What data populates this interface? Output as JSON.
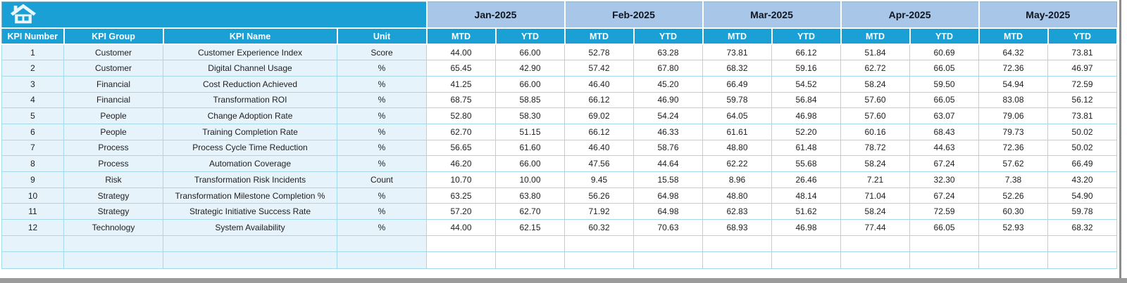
{
  "colors": {
    "header_cyan": "#1BA0D5",
    "month_band_blue": "#A8C6E7",
    "month_text": "#101520",
    "row_light_blue": "#E7F3FB",
    "grid_border": "#A3D9EA",
    "value_text": "#212121",
    "window_edge_gray": "#9B9B9B"
  },
  "icons": {
    "home": "home-icon"
  },
  "table": {
    "left_headers": [
      "KPI Number",
      "KPI Group",
      "KPI Name",
      "Unit"
    ],
    "months": [
      "Jan-2025",
      "Feb-2025",
      "Mar-2025",
      "Apr-2025",
      "May-2025"
    ],
    "sub_headers": [
      "MTD",
      "YTD"
    ],
    "rows": [
      {
        "number": "1",
        "group": "Customer",
        "name": "Customer Experience Index",
        "unit": "Score",
        "values": [
          "44.00",
          "66.00",
          "52.78",
          "63.28",
          "73.81",
          "66.12",
          "51.84",
          "60.69",
          "64.32",
          "73.81"
        ]
      },
      {
        "number": "2",
        "group": "Customer",
        "name": "Digital Channel Usage",
        "unit": "%",
        "values": [
          "65.45",
          "42.90",
          "57.42",
          "67.80",
          "68.32",
          "59.16",
          "62.72",
          "66.05",
          "72.36",
          "46.97"
        ]
      },
      {
        "number": "3",
        "group": "Financial",
        "name": "Cost Reduction Achieved",
        "unit": "%",
        "values": [
          "41.25",
          "66.00",
          "46.40",
          "45.20",
          "66.49",
          "54.52",
          "58.24",
          "59.50",
          "54.94",
          "72.59"
        ]
      },
      {
        "number": "4",
        "group": "Financial",
        "name": "Transformation ROI",
        "unit": "%",
        "values": [
          "68.75",
          "58.85",
          "66.12",
          "46.90",
          "59.78",
          "56.84",
          "57.60",
          "66.05",
          "83.08",
          "56.12"
        ]
      },
      {
        "number": "5",
        "group": "People",
        "name": "Change Adoption Rate",
        "unit": "%",
        "values": [
          "52.80",
          "58.30",
          "69.02",
          "54.24",
          "64.05",
          "46.98",
          "57.60",
          "63.07",
          "79.06",
          "73.81"
        ]
      },
      {
        "number": "6",
        "group": "People",
        "name": "Training Completion Rate",
        "unit": "%",
        "values": [
          "62.70",
          "51.15",
          "66.12",
          "46.33",
          "61.61",
          "52.20",
          "60.16",
          "68.43",
          "79.73",
          "50.02"
        ]
      },
      {
        "number": "7",
        "group": "Process",
        "name": "Process Cycle Time Reduction",
        "unit": "%",
        "values": [
          "56.65",
          "61.60",
          "46.40",
          "58.76",
          "48.80",
          "61.48",
          "78.72",
          "44.63",
          "72.36",
          "50.02"
        ]
      },
      {
        "number": "8",
        "group": "Process",
        "name": "Automation Coverage",
        "unit": "%",
        "values": [
          "46.20",
          "66.00",
          "47.56",
          "44.64",
          "62.22",
          "55.68",
          "58.24",
          "67.24",
          "57.62",
          "66.49"
        ]
      },
      {
        "number": "9",
        "group": "Risk",
        "name": "Transformation Risk Incidents",
        "unit": "Count",
        "values": [
          "10.70",
          "10.00",
          "9.45",
          "15.58",
          "8.96",
          "26.46",
          "7.21",
          "32.30",
          "7.38",
          "43.20"
        ]
      },
      {
        "number": "10",
        "group": "Strategy",
        "name": "Transformation Milestone Completion %",
        "unit": "%",
        "values": [
          "63.25",
          "63.80",
          "56.26",
          "64.98",
          "48.80",
          "48.14",
          "71.04",
          "67.24",
          "52.26",
          "54.90"
        ]
      },
      {
        "number": "11",
        "group": "Strategy",
        "name": "Strategic Initiative Success Rate",
        "unit": "%",
        "values": [
          "57.20",
          "62.70",
          "71.92",
          "64.98",
          "62.83",
          "51.62",
          "58.24",
          "72.59",
          "60.30",
          "59.78"
        ]
      },
      {
        "number": "12",
        "group": "Technology",
        "name": "System Availability",
        "unit": "%",
        "values": [
          "44.00",
          "62.15",
          "60.32",
          "70.63",
          "68.93",
          "46.98",
          "77.44",
          "66.05",
          "52.93",
          "68.32"
        ]
      }
    ],
    "empty_row_count": 2
  }
}
